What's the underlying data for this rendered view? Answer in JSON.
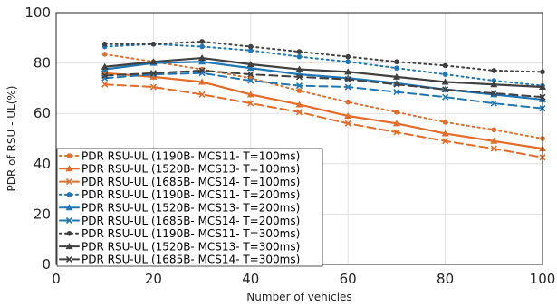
{
  "chart_data": {
    "type": "line",
    "title": "",
    "xlabel": "Number of vehicles",
    "ylabel": "PDR of RSU - UL(%)",
    "xlim": [
      0,
      100
    ],
    "ylim": [
      0,
      100
    ],
    "xticks": [
      0,
      20,
      40,
      60,
      80,
      100
    ],
    "yticks": [
      0,
      20,
      40,
      60,
      80,
      100
    ],
    "grid": true,
    "legend_position": "bottom-left",
    "x": [
      10,
      20,
      30,
      40,
      50,
      60,
      70,
      80,
      90,
      100
    ],
    "series": [
      {
        "name": "PDR RSU-UL (1190B- MCS11- T=100ms)",
        "color": "#E46C29",
        "line_style": "dotted",
        "marker": "dot",
        "values": [
          83.5,
          80.5,
          77.5,
          74,
          69,
          64.5,
          60.5,
          56.5,
          53.5,
          50
        ]
      },
      {
        "name": "PDR RSU-UL (1520B- MCS13- T=100ms)",
        "color": "#E46C29",
        "line_style": "solid",
        "marker": "triangle",
        "values": [
          76,
          74.5,
          72.5,
          67.5,
          63.5,
          59,
          56,
          52,
          49,
          46
        ]
      },
      {
        "name": "PDR RSU-UL (1685B- MCS14- T=100ms)",
        "color": "#E46C29",
        "line_style": "dashed",
        "marker": "x",
        "values": [
          71.5,
          70.5,
          67.5,
          64,
          60.5,
          56,
          52.5,
          49,
          46,
          42.5
        ]
      },
      {
        "name": "PDR RSU-UL (1190B- MCS11- T=200ms)",
        "color": "#1F77B4",
        "line_style": "dotted",
        "marker": "dot",
        "values": [
          86.5,
          87.5,
          86.5,
          85,
          82.5,
          80.5,
          78,
          75.5,
          73,
          71
        ]
      },
      {
        "name": "PDR RSU-UL (1520B- MCS13- T=200ms)",
        "color": "#1F77B4",
        "line_style": "solid",
        "marker": "triangle",
        "values": [
          77.5,
          80,
          80.5,
          78,
          75.5,
          74,
          72,
          69.5,
          67.5,
          65.5
        ]
      },
      {
        "name": "PDR RSU-UL (1685B- MCS14- T=200ms)",
        "color": "#1F77B4",
        "line_style": "dashed",
        "marker": "x",
        "values": [
          74,
          75.5,
          76,
          73,
          71,
          70.5,
          68.5,
          66.5,
          64,
          62
        ]
      },
      {
        "name": "PDR RSU-UL (1190B- MCS11- T=300ms)",
        "color": "#404040",
        "line_style": "dotted",
        "marker": "dot",
        "values": [
          87.5,
          87.5,
          88.5,
          86.5,
          84.5,
          82.5,
          80.5,
          79,
          77,
          76.5
        ]
      },
      {
        "name": "PDR RSU-UL (1520B- MCS13- T=300ms)",
        "color": "#404040",
        "line_style": "solid",
        "marker": "triangle",
        "values": [
          78.5,
          80.5,
          82,
          79.5,
          77.5,
          76.5,
          74.5,
          72.5,
          71.5,
          70.5
        ]
      },
      {
        "name": "PDR RSU-UL (1685B- MCS14- T=300ms)",
        "color": "#404040",
        "line_style": "dashed",
        "marker": "x",
        "values": [
          75,
          76,
          77,
          75.5,
          74.5,
          73.5,
          71.5,
          69.5,
          68,
          66.5
        ]
      }
    ]
  }
}
